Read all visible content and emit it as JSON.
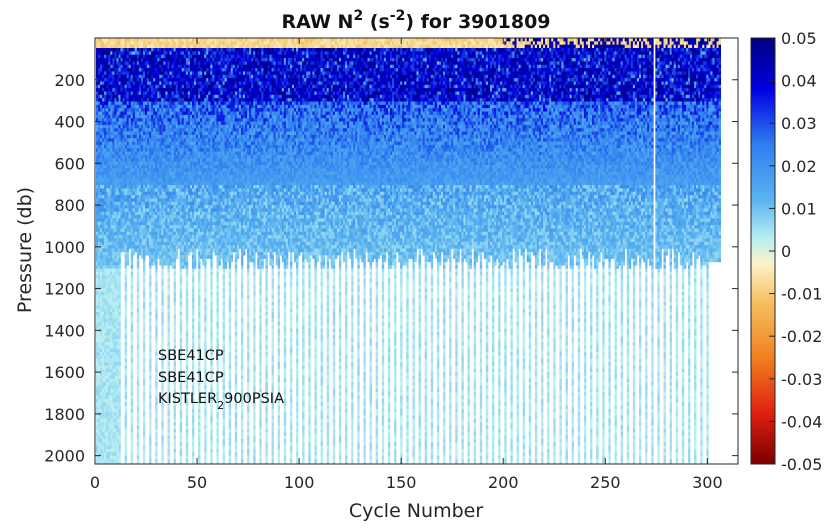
{
  "chart_data": {
    "type": "heatmap",
    "title": {
      "prefix": "RAW N",
      "power": "2",
      "unit_open": " (s",
      "unit_power": "-2",
      "unit_close": ")",
      "suffix": " for 3901809"
    },
    "xlabel": "Cycle Number",
    "ylabel": "Pressure (db)",
    "xlim": [
      0,
      315
    ],
    "ylim": [
      2040,
      0
    ],
    "x_ticks": [
      0,
      50,
      100,
      150,
      200,
      250,
      300
    ],
    "y_ticks": [
      200,
      400,
      600,
      800,
      1000,
      1200,
      1400,
      1600,
      1800,
      2000
    ],
    "colorbar": {
      "range": [
        -0.05,
        0.05
      ],
      "ticks": [
        "0.05",
        "0.04",
        "0.03",
        "0.02",
        "0.01",
        "0",
        "-0.01",
        "-0.02",
        "-0.03",
        "-0.04",
        "-0.05"
      ],
      "colormap": "jet-like"
    },
    "annotation": {
      "line1": "SBE41CP",
      "line2": "SBE41CP",
      "line3_main": "KISTLER",
      "line3_sub": "2",
      "line3_rest": "900PSIA"
    },
    "grid": false,
    "colors": {
      "deep_blue": "#0a1a8c",
      "mid_blue": "#3f6fd8",
      "light_cyan": "#a9ecef",
      "near_zero": "#f3f0d0",
      "orange": "#f0a030",
      "dark_red": "#800000"
    }
  }
}
